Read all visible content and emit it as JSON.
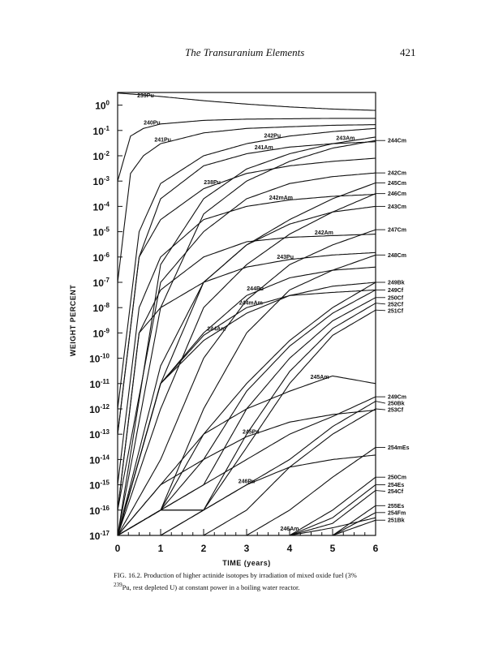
{
  "running_head": {
    "title": "The Transuranium Elements",
    "page_number": "421"
  },
  "chart_data": {
    "type": "line",
    "xlabel": "TIME (years)",
    "ylabel": "WEIGHT PERCENT",
    "x_ticks": [
      "0",
      "1",
      "2",
      "3",
      "4",
      "5",
      "6"
    ],
    "y_ticks": [
      {
        "base": "10",
        "exp": "0"
      },
      {
        "base": "10",
        "exp": "-1"
      },
      {
        "base": "10",
        "exp": "-2"
      },
      {
        "base": "10",
        "exp": "-3"
      },
      {
        "base": "10",
        "exp": "-4"
      },
      {
        "base": "10",
        "exp": "-5"
      },
      {
        "base": "10",
        "exp": "-6"
      },
      {
        "base": "10",
        "exp": "-7"
      },
      {
        "base": "10",
        "exp": "-8"
      },
      {
        "base": "10",
        "exp": "-9"
      },
      {
        "base": "10",
        "exp": "-10"
      },
      {
        "base": "10",
        "exp": "-11"
      },
      {
        "base": "10",
        "exp": "-12"
      },
      {
        "base": "10",
        "exp": "-13"
      },
      {
        "base": "10",
        "exp": "-14"
      },
      {
        "base": "10",
        "exp": "-15"
      },
      {
        "base": "10",
        "exp": "-16"
      },
      {
        "base": "10",
        "exp": "-17"
      }
    ],
    "xlim": [
      0,
      6
    ],
    "ylim_log10": [
      -17,
      0.5
    ],
    "y_scale": "log",
    "grid": false,
    "series": [
      {
        "name": "239Pu",
        "x": [
          0,
          0.5,
          1,
          2,
          3,
          4,
          5,
          6
        ],
        "y": [
          3,
          2.6,
          2.2,
          1.5,
          1.1,
          0.85,
          0.7,
          0.62
        ],
        "label_at": 0.65
      },
      {
        "name": "240Pu",
        "x": [
          0,
          0.3,
          0.6,
          1,
          2,
          3,
          4,
          5,
          6
        ],
        "y": [
          0.001,
          0.06,
          0.12,
          0.18,
          0.25,
          0.28,
          0.29,
          0.3,
          0.3
        ],
        "label_at": 0.8
      },
      {
        "name": "241Pu",
        "x": [
          0,
          0.3,
          0.6,
          1,
          2,
          3,
          4,
          5,
          6
        ],
        "y": [
          1e-07,
          0.002,
          0.01,
          0.03,
          0.08,
          0.12,
          0.14,
          0.16,
          0.17
        ],
        "label_at": 1.05
      },
      {
        "name": "242Pu",
        "x": [
          0,
          0.5,
          1,
          2,
          3,
          4,
          5,
          6
        ],
        "y": [
          1e-12,
          1e-05,
          0.0008,
          0.01,
          0.03,
          0.06,
          0.09,
          0.12
        ],
        "label_at": 3.6
      },
      {
        "name": "241Am",
        "x": [
          0,
          0.5,
          1,
          2,
          3,
          4,
          5,
          6
        ],
        "y": [
          1e-13,
          1e-06,
          0.0002,
          0.004,
          0.012,
          0.022,
          0.03,
          0.036
        ],
        "label_at": 3.4
      },
      {
        "name": "243Am",
        "x": [
          0,
          1,
          2,
          3,
          4,
          5,
          6
        ],
        "y": [
          1e-17,
          5e-07,
          0.0002,
          0.003,
          0.012,
          0.03,
          0.055
        ],
        "label_at": 5.3
      },
      {
        "name": "238Pu",
        "x": [
          0,
          0.5,
          1,
          2,
          3,
          4,
          5,
          6
        ],
        "y": [
          1e-13,
          1e-06,
          3e-05,
          0.0005,
          0.002,
          0.004,
          0.006,
          0.008
        ],
        "label_at": 2.2
      },
      {
        "name": "242mAm",
        "x": [
          0,
          0.5,
          1,
          2,
          3,
          4,
          5,
          6
        ],
        "y": [
          1e-15,
          1e-08,
          1e-06,
          3e-05,
          0.0001,
          0.00018,
          0.00025,
          0.0003
        ],
        "label_at": 3.8
      },
      {
        "name": "242Cm",
        "x": [
          0,
          1,
          2,
          3,
          4,
          5,
          6
        ],
        "y": [
          1e-16,
          1e-07,
          1e-05,
          0.0002,
          0.0008,
          0.0015,
          0.0021
        ]
      },
      {
        "name": "245Cm",
        "x": [
          0,
          1,
          2,
          3,
          4,
          5,
          6
        ],
        "y": [
          1e-17,
          1e-11,
          1e-07,
          3e-06,
          3e-05,
          0.0002,
          0.00085
        ]
      },
      {
        "name": "246Cm",
        "x": [
          0,
          1,
          2,
          3,
          4,
          5,
          6
        ],
        "y": [
          1e-17,
          1e-12,
          1e-08,
          5e-07,
          8e-06,
          6e-05,
          0.00032
        ]
      },
      {
        "name": "243Cm",
        "x": [
          0,
          1,
          2,
          3,
          4,
          5,
          6
        ],
        "y": [
          1e-17,
          5e-11,
          1e-07,
          3e-06,
          2e-05,
          6e-05,
          0.0001
        ]
      },
      {
        "name": "244Cm",
        "x": [
          0,
          1,
          2,
          3,
          4,
          5,
          6
        ],
        "y": [
          1e-17,
          1e-08,
          5e-05,
          0.001,
          0.006,
          0.02,
          0.04
        ]
      },
      {
        "name": "242Am",
        "x": [
          0,
          0.5,
          1,
          2,
          3,
          4,
          5,
          6
        ],
        "y": [
          1e-16,
          1e-09,
          5e-08,
          1e-06,
          4e-06,
          6e-06,
          7e-06,
          8e-06
        ],
        "label_at": 4.8
      },
      {
        "name": "247Cm",
        "x": [
          0,
          1,
          2,
          3,
          4,
          5,
          6
        ],
        "y": [
          1e-17,
          1e-14,
          1e-10,
          2e-08,
          5e-07,
          3e-06,
          1.2e-05
        ]
      },
      {
        "name": "243Pu",
        "x": [
          0,
          0.5,
          1,
          2,
          3,
          4,
          5,
          6
        ],
        "y": [
          1e-16,
          1e-09,
          1e-08,
          1e-07,
          4e-07,
          8e-07,
          1.2e-06,
          1.5e-06
        ],
        "label_at": 3.9
      },
      {
        "name": "248Cm",
        "x": [
          0,
          1,
          2,
          3,
          4,
          5,
          6
        ],
        "y": [
          1e-17,
          1e-16,
          1e-12,
          1e-09,
          5e-08,
          3e-07,
          1.2e-06
        ]
      },
      {
        "name": "244Pu",
        "x": [
          0,
          1,
          2,
          3,
          4,
          5,
          6
        ],
        "y": [
          1e-17,
          1e-11,
          1e-09,
          3e-08,
          1.5e-07,
          3e-07,
          4e-07
        ],
        "label_at": 3.2
      },
      {
        "name": "244Am",
        "x": [
          0,
          1,
          2,
          3,
          4,
          5,
          6
        ],
        "y": [
          1e-17,
          1e-11,
          5e-10,
          6e-09,
          3e-08,
          7e-08,
          1e-07
        ],
        "label_at": 2.3
      },
      {
        "name": "244mAm",
        "x": [
          0,
          1,
          2,
          3,
          4,
          5,
          6
        ],
        "y": [
          1e-17,
          1e-11,
          8e-10,
          1e-08,
          3e-08,
          4e-08,
          5e-08
        ],
        "label_at": 3.1
      },
      {
        "name": "249Bk",
        "x": [
          0,
          1,
          2,
          3,
          4,
          5,
          6
        ],
        "y": [
          1e-17,
          1e-16,
          1e-13,
          1e-11,
          5e-10,
          1e-08,
          1e-07
        ]
      },
      {
        "name": "249Cf",
        "x": [
          0,
          1,
          2,
          3,
          4,
          5,
          6
        ],
        "y": [
          1e-17,
          1e-16,
          1e-14,
          5e-12,
          3e-10,
          6e-09,
          5e-08
        ]
      },
      {
        "name": "250Cf",
        "x": [
          0,
          1,
          2,
          3,
          4,
          5,
          6
        ],
        "y": [
          1e-17,
          1e-16,
          1e-15,
          1e-12,
          1e-10,
          3e-09,
          2.5e-08
        ]
      },
      {
        "name": "252Cf",
        "x": [
          0,
          1,
          2,
          3,
          4,
          5,
          6
        ],
        "y": [
          1e-17,
          1e-16,
          1e-16,
          1e-13,
          3e-11,
          1.5e-09,
          1.5e-08
        ]
      },
      {
        "name": "251Cf",
        "x": [
          0,
          1,
          2,
          3,
          4,
          5,
          6
        ],
        "y": [
          1e-17,
          1e-16,
          1e-16,
          3e-14,
          1e-11,
          8e-10,
          8e-09
        ]
      },
      {
        "name": "245Am",
        "x": [
          0,
          1,
          2,
          3,
          4,
          5,
          6
        ],
        "y": [
          1e-17,
          1e-15,
          1e-13,
          1e-12,
          5e-12,
          2e-11,
          1e-11
        ],
        "label_at": 4.7
      },
      {
        "name": "249Cm",
        "x": [
          0,
          1,
          2,
          3,
          4,
          5,
          6
        ],
        "y": [
          1e-17,
          1e-16,
          1e-15,
          1e-14,
          1e-13,
          5e-13,
          3e-12
        ]
      },
      {
        "name": "250Bk",
        "x": [
          0,
          1,
          2,
          3,
          4,
          5,
          6
        ],
        "y": [
          1e-17,
          1e-17,
          1e-16,
          1e-15,
          1e-14,
          2e-13,
          2e-12
        ]
      },
      {
        "name": "253Cf",
        "x": [
          0,
          1,
          2,
          3,
          4,
          5,
          6
        ],
        "y": [
          1e-17,
          1e-17,
          1e-17,
          1e-16,
          5e-15,
          1e-13,
          1e-12
        ]
      },
      {
        "name": "245Pu",
        "x": [
          0,
          1,
          2,
          3,
          4,
          5,
          6
        ],
        "y": [
          1e-17,
          1e-15,
          1e-14,
          8e-14,
          3e-13,
          6e-13,
          9e-13
        ],
        "label_at": 3.1
      },
      {
        "name": "254mEs",
        "x": [
          0,
          1,
          2,
          3,
          4,
          5,
          6
        ],
        "y": [
          1e-17,
          1e-17,
          1e-17,
          1e-17,
          1e-16,
          2e-15,
          3e-14
        ]
      },
      {
        "name": "250Cm",
        "x": [
          0,
          1,
          2,
          3,
          4,
          5,
          6
        ],
        "y": [
          1e-17,
          1e-17,
          1e-17,
          1e-17,
          1e-17,
          1e-16,
          2e-15
        ]
      },
      {
        "name": "254Es",
        "x": [
          0,
          1,
          2,
          3,
          4,
          5,
          6
        ],
        "y": [
          1e-17,
          1e-17,
          1e-17,
          1e-17,
          1e-17,
          5e-17,
          1e-15
        ]
      },
      {
        "name": "254Cf",
        "x": [
          0,
          1,
          2,
          3,
          4,
          5,
          6
        ],
        "y": [
          1e-17,
          1e-17,
          1e-17,
          1e-17,
          1e-17,
          3e-17,
          6e-16
        ]
      },
      {
        "name": "246Pu",
        "x": [
          0,
          1,
          2,
          3,
          4,
          5,
          6
        ],
        "y": [
          1e-17,
          1e-17,
          1e-16,
          1e-15,
          5e-15,
          1e-14,
          1.5e-14
        ],
        "label_at": 3.0
      },
      {
        "name": "255Es",
        "x": [
          0,
          1,
          2,
          3,
          4,
          5,
          6
        ],
        "y": [
          1e-17,
          1e-17,
          1e-17,
          1e-17,
          1e-17,
          1e-17,
          1.5e-16
        ]
      },
      {
        "name": "254Fm",
        "x": [
          0,
          1,
          2,
          3,
          4,
          5,
          6
        ],
        "y": [
          1e-17,
          1e-17,
          1e-17,
          1e-17,
          1e-17,
          1e-17,
          8e-17
        ]
      },
      {
        "name": "251Bk",
        "x": [
          0,
          1,
          2,
          3,
          4,
          5,
          6
        ],
        "y": [
          1e-17,
          1e-17,
          1e-17,
          1e-17,
          1e-17,
          1e-17,
          4e-17
        ]
      },
      {
        "name": "246Am",
        "x": [
          0,
          1,
          2,
          3,
          4,
          5,
          6
        ],
        "y": [
          1e-17,
          1e-17,
          1e-17,
          1e-17,
          1e-17,
          2e-17,
          5e-17
        ],
        "label_at": 4.0
      }
    ],
    "right_labels": [
      "244Cm",
      "242Cm",
      "245Cm",
      "246Cm",
      "243Cm",
      "247Cm",
      "248Cm",
      "249Bk",
      "249Cf",
      "250Cf",
      "252Cf",
      "251Cf",
      "249Cm",
      "250Bk",
      "253Cf",
      "254mEs",
      "250Cm",
      "254Es",
      "254Cf",
      "255Es",
      "254Fm",
      "251Bk"
    ]
  },
  "caption": {
    "line1": "FIG. 16.2. Production of higher actinide isotopes by irradiation of mixed oxide fuel (3%",
    "line2_sup": "239",
    "line2": "Pu, rest depleted U) at constant power in a boiling water reactor."
  }
}
